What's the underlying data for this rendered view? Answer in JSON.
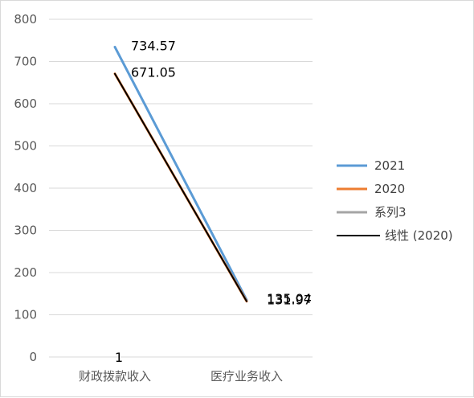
{
  "chart_data": {
    "type": "line",
    "categories": [
      "财政拨款收入",
      "医疗业务收入"
    ],
    "ylim": [
      0,
      800
    ],
    "yticks": [
      0,
      100,
      200,
      300,
      400,
      500,
      600,
      700,
      800
    ],
    "grid": true,
    "legend_position": "right",
    "series": [
      {
        "name": "2021",
        "values": [
          734.57,
          135.04
        ],
        "color": "#5b9bd5",
        "labels": [
          "734.57",
          "135.04"
        ]
      },
      {
        "name": "2020",
        "values": [
          671.05,
          131.97
        ],
        "color": "#ed7d31",
        "labels": [
          "671.05",
          "131.97"
        ]
      },
      {
        "name": "系列3",
        "values": [
          null,
          null
        ],
        "color": "#a5a5a5",
        "labels": [
          "1",
          ""
        ]
      },
      {
        "name": "线性 (2020)",
        "values": [
          671.05,
          131.97
        ],
        "color": "#000000",
        "labels": [
          "",
          ""
        ],
        "trendline": true
      }
    ]
  }
}
